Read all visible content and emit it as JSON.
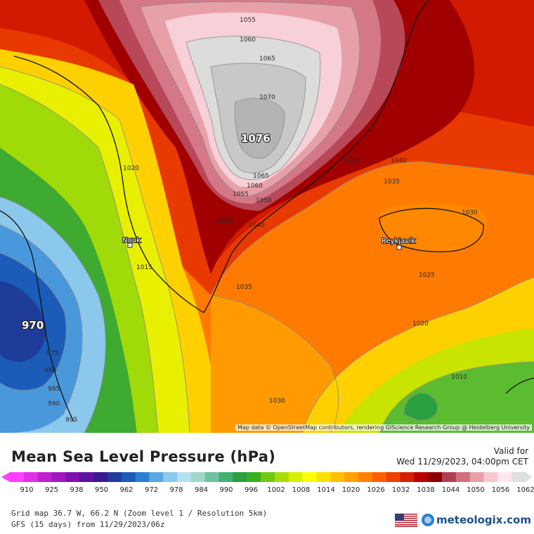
{
  "header": {
    "title": "Mean Sea Level Pressure (hPa)",
    "valid_label": "Valid for",
    "valid_time": "Wed 11/29/2023, 04:00pm CET"
  },
  "map": {
    "attribution": "Map data © OpenStreetMap contributors, rendering GIScience Research Group @ Heidelberg University",
    "high_center": "1076",
    "low_center": "970",
    "cities": [
      "Nuuk",
      "Reykjavík"
    ],
    "isobar_labels": [
      "1055",
      "1060",
      "1065",
      "1070",
      "1065",
      "1060",
      "1055",
      "1050",
      "1045",
      "1040",
      "1045",
      "1040",
      "1035",
      "1030",
      "1025",
      "1020",
      "1035",
      "1030",
      "1010",
      "1020",
      "1015",
      "975",
      "980",
      "985",
      "990",
      "995"
    ]
  },
  "colorbar": {
    "ticks": [
      "910",
      "925",
      "938",
      "950",
      "962",
      "972",
      "978",
      "984",
      "990",
      "996",
      "1002",
      "1008",
      "1014",
      "1020",
      "1026",
      "1032",
      "1038",
      "1044",
      "1050",
      "1056",
      "1062"
    ],
    "colors": [
      "#ff40ff",
      "#e030e8",
      "#c020d0",
      "#a018c0",
      "#8010b0",
      "#6010a0",
      "#3a1890",
      "#1e3c9a",
      "#1a5cb8",
      "#2a80d0",
      "#5aa8e0",
      "#8cc8ec",
      "#b4e0ee",
      "#9ed8c8",
      "#6cc49c",
      "#44b070",
      "#2aa040",
      "#38b020",
      "#70c810",
      "#a8dc08",
      "#d8ee00",
      "#ffff00",
      "#ffe000",
      "#ffc000",
      "#ffa000",
      "#ff8000",
      "#ff6000",
      "#f04000",
      "#d82000",
      "#b80000",
      "#900000",
      "#b04050",
      "#d07080",
      "#e8a0a8",
      "#f8c8d0",
      "#ffe8ec",
      "#e0e0e0"
    ]
  },
  "footer": {
    "grid_info": "Grid map 36.7 W, 66.2 N (Zoom level 1 / Resolution 5km)",
    "model_info": "GFS (15 days) from  11/29/2023/06z",
    "brand": "meteologix.com"
  }
}
